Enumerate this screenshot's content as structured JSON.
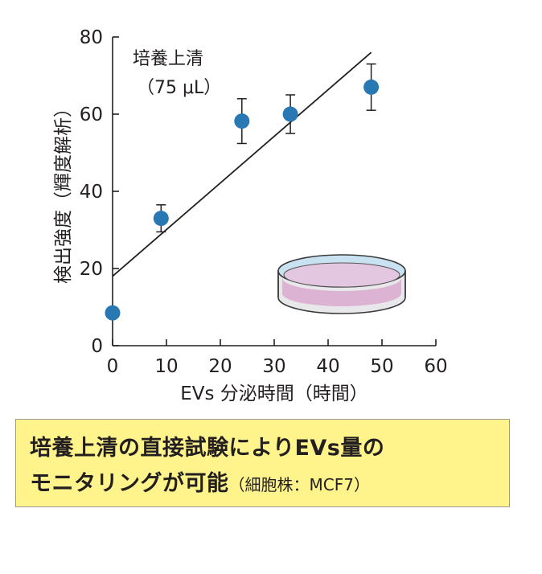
{
  "chart_data": {
    "type": "scatter",
    "xlabel": "EVs 分泌時間（時間）",
    "ylabel": "検出強度（輝度解析）",
    "xlim": [
      0,
      60
    ],
    "ylim": [
      0,
      80
    ],
    "xticks": [
      0,
      10,
      20,
      30,
      40,
      50,
      60
    ],
    "yticks": [
      0,
      20,
      40,
      60,
      80
    ],
    "grid": false,
    "points": [
      {
        "x": 0,
        "y": 8.5,
        "err": null
      },
      {
        "x": 9,
        "y": 33,
        "err": 3.5
      },
      {
        "x": 24,
        "y": 58.2,
        "err": 5.8
      },
      {
        "x": 33,
        "y": 60,
        "err": 5
      },
      {
        "x": 48,
        "y": 67,
        "err": 6
      }
    ],
    "fit_line": {
      "x": [
        0,
        48
      ],
      "y": [
        18,
        76
      ]
    },
    "annotation": {
      "line1": "培養上清",
      "line2": "（75 μL）"
    },
    "colors": {
      "points": "#2878b4",
      "line": "#231f20"
    }
  },
  "caption": {
    "line1": "培養上清の直接試験によりEVs量の",
    "line2": "モニタリングが可能",
    "line2_sub": "（細胞株：MCF7）"
  },
  "icons": {
    "dish": "petri-dish-icon"
  }
}
